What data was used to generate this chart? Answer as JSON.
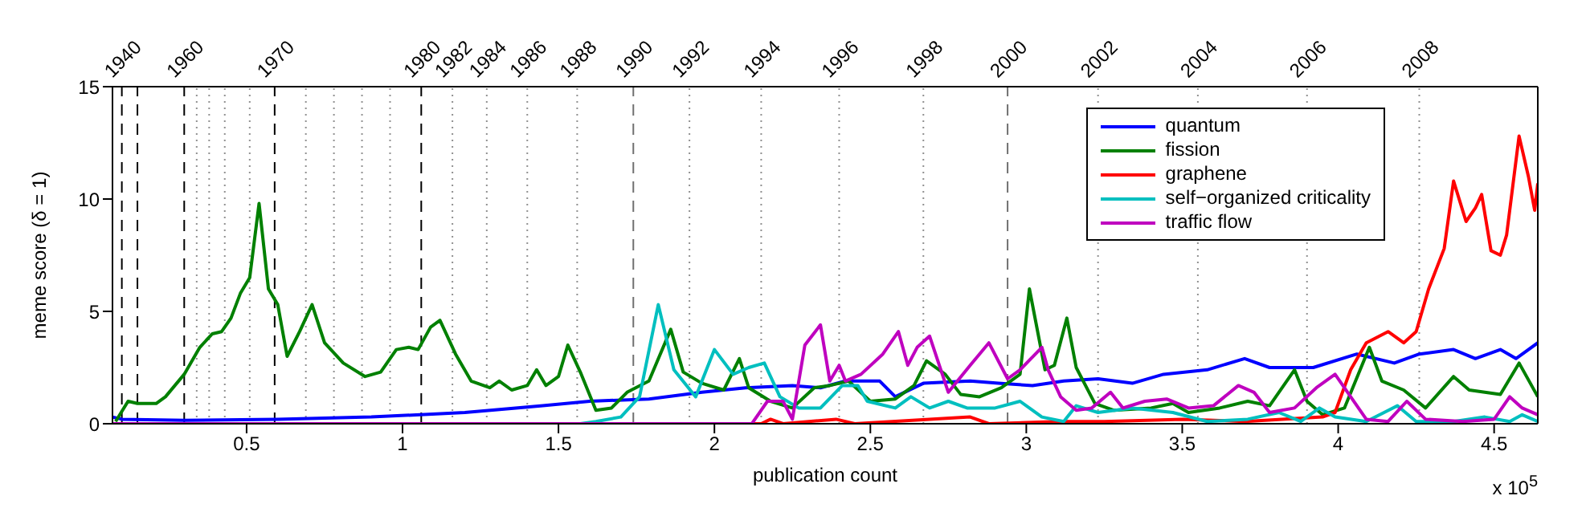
{
  "chart_data": {
    "type": "line",
    "xlabel": "publication count",
    "ylabel": "meme score (δ = 1)",
    "xlim": [
      0.07,
      4.64
    ],
    "xticks": [
      0.5,
      1,
      1.5,
      2,
      2.5,
      3,
      3.5,
      4,
      4.5
    ],
    "ylim": [
      0,
      15
    ],
    "yticks": [
      0,
      5,
      10,
      15
    ],
    "ref_lines": [
      {
        "axis": "x",
        "value": 0.1,
        "line_style": "dashed",
        "color": "#000000"
      },
      {
        "axis": "x",
        "value": 0.15,
        "line_style": "dashed",
        "color": "#000000"
      },
      {
        "axis": "x",
        "value": 0.3,
        "line_style": "dashed",
        "color": "#000000"
      },
      {
        "axis": "x",
        "value": 0.59,
        "line_style": "dashed",
        "color": "#000000"
      },
      {
        "axis": "x",
        "value": 1.06,
        "line_style": "dashed",
        "color": "#000000"
      },
      {
        "axis": "x",
        "value": 1.74,
        "line_style": "dashed",
        "color": "#707070"
      },
      {
        "axis": "x",
        "value": 2.94,
        "line_style": "dashed",
        "color": "#707070"
      },
      {
        "axis": "x",
        "value": 0.34,
        "line_style": "dotted",
        "color": "#909090"
      },
      {
        "axis": "x",
        "value": 0.38,
        "line_style": "dotted",
        "color": "#909090"
      },
      {
        "axis": "x",
        "value": 0.43,
        "line_style": "dotted",
        "color": "#909090"
      },
      {
        "axis": "x",
        "value": 0.51,
        "line_style": "dotted",
        "color": "#909090"
      },
      {
        "axis": "x",
        "value": 0.69,
        "line_style": "dotted",
        "color": "#909090"
      },
      {
        "axis": "x",
        "value": 0.78,
        "line_style": "dotted",
        "color": "#909090"
      },
      {
        "axis": "x",
        "value": 0.87,
        "line_style": "dotted",
        "color": "#909090"
      },
      {
        "axis": "x",
        "value": 0.96,
        "line_style": "dotted",
        "color": "#909090"
      },
      {
        "axis": "x",
        "value": 1.16,
        "line_style": "dotted",
        "color": "#909090"
      },
      {
        "axis": "x",
        "value": 1.27,
        "line_style": "dotted",
        "color": "#909090"
      },
      {
        "axis": "x",
        "value": 1.4,
        "line_style": "dotted",
        "color": "#909090"
      },
      {
        "axis": "x",
        "value": 1.56,
        "line_style": "dotted",
        "color": "#909090"
      },
      {
        "axis": "x",
        "value": 1.92,
        "line_style": "dotted",
        "color": "#909090"
      },
      {
        "axis": "x",
        "value": 2.15,
        "line_style": "dotted",
        "color": "#909090"
      },
      {
        "axis": "x",
        "value": 2.4,
        "line_style": "dotted",
        "color": "#909090"
      },
      {
        "axis": "x",
        "value": 2.67,
        "line_style": "dotted",
        "color": "#909090"
      },
      {
        "axis": "x",
        "value": 3.23,
        "line_style": "dotted",
        "color": "#909090"
      },
      {
        "axis": "x",
        "value": 3.55,
        "line_style": "dotted",
        "color": "#909090"
      },
      {
        "axis": "x",
        "value": 3.9,
        "line_style": "dotted",
        "color": "#909090"
      },
      {
        "axis": "x",
        "value": 4.26,
        "line_style": "dotted",
        "color": "#909090"
      }
    ],
    "legend": "top right",
    "annotations": [
      "x 10$^{5}$",
      {
        "text": "1940",
        "x": 0.1,
        "y": 15
      },
      {
        "text": "1960",
        "x": 0.3,
        "y": 15
      },
      {
        "text": "1970",
        "x": 0.59,
        "y": 15
      },
      {
        "text": "1980",
        "x": 1.06,
        "y": 15
      },
      {
        "text": "1982",
        "x": 1.16,
        "y": 15
      },
      {
        "text": "1984",
        "x": 1.27,
        "y": 15
      },
      {
        "text": "1986",
        "x": 1.4,
        "y": 15
      },
      {
        "text": "1988",
        "x": 1.56,
        "y": 15
      },
      {
        "text": "1990",
        "x": 1.74,
        "y": 15
      },
      {
        "text": "1992",
        "x": 1.92,
        "y": 15
      },
      {
        "text": "1994",
        "x": 2.15,
        "y": 15
      },
      {
        "text": "1996",
        "x": 2.4,
        "y": 15
      },
      {
        "text": "1998",
        "x": 2.67,
        "y": 15
      },
      {
        "text": "2000",
        "x": 2.94,
        "y": 15
      },
      {
        "text": "2002",
        "x": 3.23,
        "y": 15
      },
      {
        "text": "2004",
        "x": 3.55,
        "y": 15
      },
      {
        "text": "2006",
        "x": 3.9,
        "y": 15
      },
      {
        "text": "2008",
        "x": 4.26,
        "y": 15
      }
    ],
    "series": [
      {
        "name": "quantum",
        "color": "#0000ff",
        "x": [
          0.07,
          0.1,
          0.3,
          0.6,
          0.9,
          1.2,
          1.45,
          1.6,
          1.79,
          1.96,
          2.1,
          2.25,
          2.34,
          2.42,
          2.53,
          2.58,
          2.67,
          2.82,
          2.91,
          3.02,
          3.12,
          3.23,
          3.34,
          3.44,
          3.58,
          3.7,
          3.78,
          3.92,
          4.06,
          4.18,
          4.26,
          4.37,
          4.44,
          4.52,
          4.57,
          4.64
        ],
        "values": [
          0.3,
          0.2,
          0.15,
          0.2,
          0.3,
          0.5,
          0.8,
          1.0,
          1.1,
          1.4,
          1.6,
          1.7,
          1.6,
          1.9,
          1.9,
          1.2,
          1.8,
          1.9,
          1.8,
          1.7,
          1.9,
          2.0,
          1.8,
          2.2,
          2.4,
          2.9,
          2.5,
          2.5,
          3.1,
          2.7,
          3.1,
          3.3,
          2.9,
          3.3,
          2.9,
          3.6
        ]
      },
      {
        "name": "fission",
        "color": "#008000",
        "x": [
          0.08,
          0.12,
          0.15,
          0.21,
          0.24,
          0.3,
          0.35,
          0.39,
          0.42,
          0.45,
          0.48,
          0.51,
          0.54,
          0.57,
          0.6,
          0.63,
          0.67,
          0.71,
          0.75,
          0.81,
          0.88,
          0.93,
          0.98,
          1.02,
          1.05,
          1.09,
          1.12,
          1.17,
          1.22,
          1.28,
          1.31,
          1.35,
          1.4,
          1.43,
          1.46,
          1.5,
          1.53,
          1.57,
          1.62,
          1.67,
          1.72,
          1.79,
          1.86,
          1.9,
          1.96,
          2.03,
          2.08,
          2.11,
          2.18,
          2.25,
          2.32,
          2.37,
          2.43,
          2.5,
          2.58,
          2.64,
          2.68,
          2.74,
          2.79,
          2.85,
          2.92,
          2.98,
          3.01,
          3.06,
          3.09,
          3.13,
          3.16,
          3.22,
          3.28,
          3.4,
          3.47,
          3.52,
          3.62,
          3.71,
          3.78,
          3.86,
          3.9,
          3.95,
          4.02,
          4.1,
          4.14,
          4.21,
          4.28,
          4.37,
          4.42,
          4.52,
          4.58,
          4.64
        ],
        "values": [
          0.1,
          1.0,
          0.9,
          0.9,
          1.2,
          2.2,
          3.4,
          4.0,
          4.1,
          4.7,
          5.8,
          6.5,
          9.8,
          6.0,
          5.3,
          3.0,
          4.1,
          5.3,
          3.6,
          2.7,
          2.1,
          2.3,
          3.3,
          3.4,
          3.3,
          4.3,
          4.6,
          3.1,
          1.9,
          1.6,
          1.9,
          1.5,
          1.7,
          2.4,
          1.7,
          2.1,
          3.5,
          2.3,
          0.6,
          0.7,
          1.4,
          1.9,
          4.2,
          2.3,
          1.8,
          1.5,
          2.9,
          1.6,
          1.0,
          0.7,
          1.6,
          1.7,
          1.9,
          1.0,
          1.1,
          1.7,
          2.8,
          2.2,
          1.3,
          1.2,
          1.6,
          2.2,
          6.0,
          2.4,
          2.6,
          4.7,
          2.5,
          0.9,
          0.6,
          0.7,
          0.9,
          0.5,
          0.7,
          1.0,
          0.8,
          2.4,
          1.0,
          0.4,
          0.7,
          3.4,
          1.9,
          1.5,
          0.7,
          2.1,
          1.5,
          1.3,
          2.7,
          1.2
        ]
      },
      {
        "name": "graphene",
        "color": "#ff0000",
        "x": [
          0.07,
          2.15,
          2.18,
          2.22,
          2.39,
          2.45,
          2.82,
          2.88,
          3.1,
          3.25,
          3.5,
          3.7,
          3.95,
          3.99,
          4.04,
          4.09,
          4.16,
          4.21,
          4.25,
          4.29,
          4.34,
          4.37,
          4.41,
          4.44,
          4.46,
          4.49,
          4.52,
          4.54,
          4.58,
          4.61,
          4.63,
          4.64
        ],
        "values": [
          0,
          0,
          0.2,
          0,
          0.2,
          0,
          0.3,
          0,
          0.1,
          0.1,
          0.2,
          0.1,
          0.3,
          0.5,
          2.4,
          3.6,
          4.1,
          3.6,
          4.1,
          6.0,
          7.8,
          10.8,
          9.0,
          9.6,
          10.2,
          7.7,
          7.5,
          8.4,
          12.8,
          11.0,
          9.5,
          10.7
        ]
      },
      {
        "name": "self−organized criticality",
        "color": "#00bfbf",
        "x": [
          0.07,
          1.57,
          1.62,
          1.7,
          1.76,
          1.82,
          1.87,
          1.94,
          2.0,
          2.06,
          2.11,
          2.16,
          2.21,
          2.27,
          2.34,
          2.41,
          2.46,
          2.49,
          2.58,
          2.63,
          2.69,
          2.75,
          2.81,
          2.9,
          2.98,
          3.05,
          3.12,
          3.16,
          3.23,
          3.34,
          3.47,
          3.58,
          3.71,
          3.81,
          3.88,
          3.94,
          3.99,
          4.09,
          4.19,
          4.25,
          4.37,
          4.47,
          4.55,
          4.59,
          4.64
        ],
        "values": [
          0,
          0,
          0.1,
          0.3,
          1.2,
          5.3,
          2.4,
          1.2,
          3.3,
          2.2,
          2.5,
          2.7,
          1.2,
          0.7,
          0.7,
          1.7,
          1.7,
          1.0,
          0.7,
          1.2,
          0.7,
          1.0,
          0.7,
          0.7,
          1.0,
          0.3,
          0.1,
          0.8,
          0.5,
          0.7,
          0.5,
          0.1,
          0.2,
          0.5,
          0.1,
          0.7,
          0.3,
          0.1,
          0.8,
          0.1,
          0.1,
          0.3,
          0.1,
          0.4,
          0.1
        ]
      },
      {
        "name": "traffic flow",
        "color": "#bf00bf",
        "x": [
          0.07,
          2.12,
          2.17,
          2.22,
          2.25,
          2.29,
          2.34,
          2.37,
          2.4,
          2.42,
          2.47,
          2.54,
          2.59,
          2.62,
          2.65,
          2.69,
          2.75,
          2.82,
          2.88,
          2.94,
          2.98,
          3.05,
          3.07,
          3.11,
          3.16,
          3.21,
          3.27,
          3.31,
          3.38,
          3.45,
          3.52,
          3.6,
          3.68,
          3.73,
          3.78,
          3.86,
          3.93,
          3.99,
          4.04,
          4.09,
          4.16,
          4.22,
          4.28,
          4.4,
          4.5,
          4.55,
          4.59,
          4.64
        ],
        "values": [
          0,
          0,
          1.0,
          1.0,
          0.2,
          3.5,
          4.4,
          1.9,
          2.6,
          1.9,
          2.2,
          3.1,
          4.1,
          2.6,
          3.4,
          3.9,
          1.4,
          2.6,
          3.6,
          2.0,
          2.4,
          3.4,
          2.4,
          1.2,
          0.6,
          0.7,
          1.4,
          0.7,
          1.0,
          1.1,
          0.7,
          0.8,
          1.7,
          1.4,
          0.5,
          0.7,
          1.6,
          2.2,
          1.2,
          0.2,
          0.1,
          1.0,
          0.2,
          0.1,
          0.2,
          1.2,
          0.7,
          0.4
        ]
      }
    ]
  }
}
